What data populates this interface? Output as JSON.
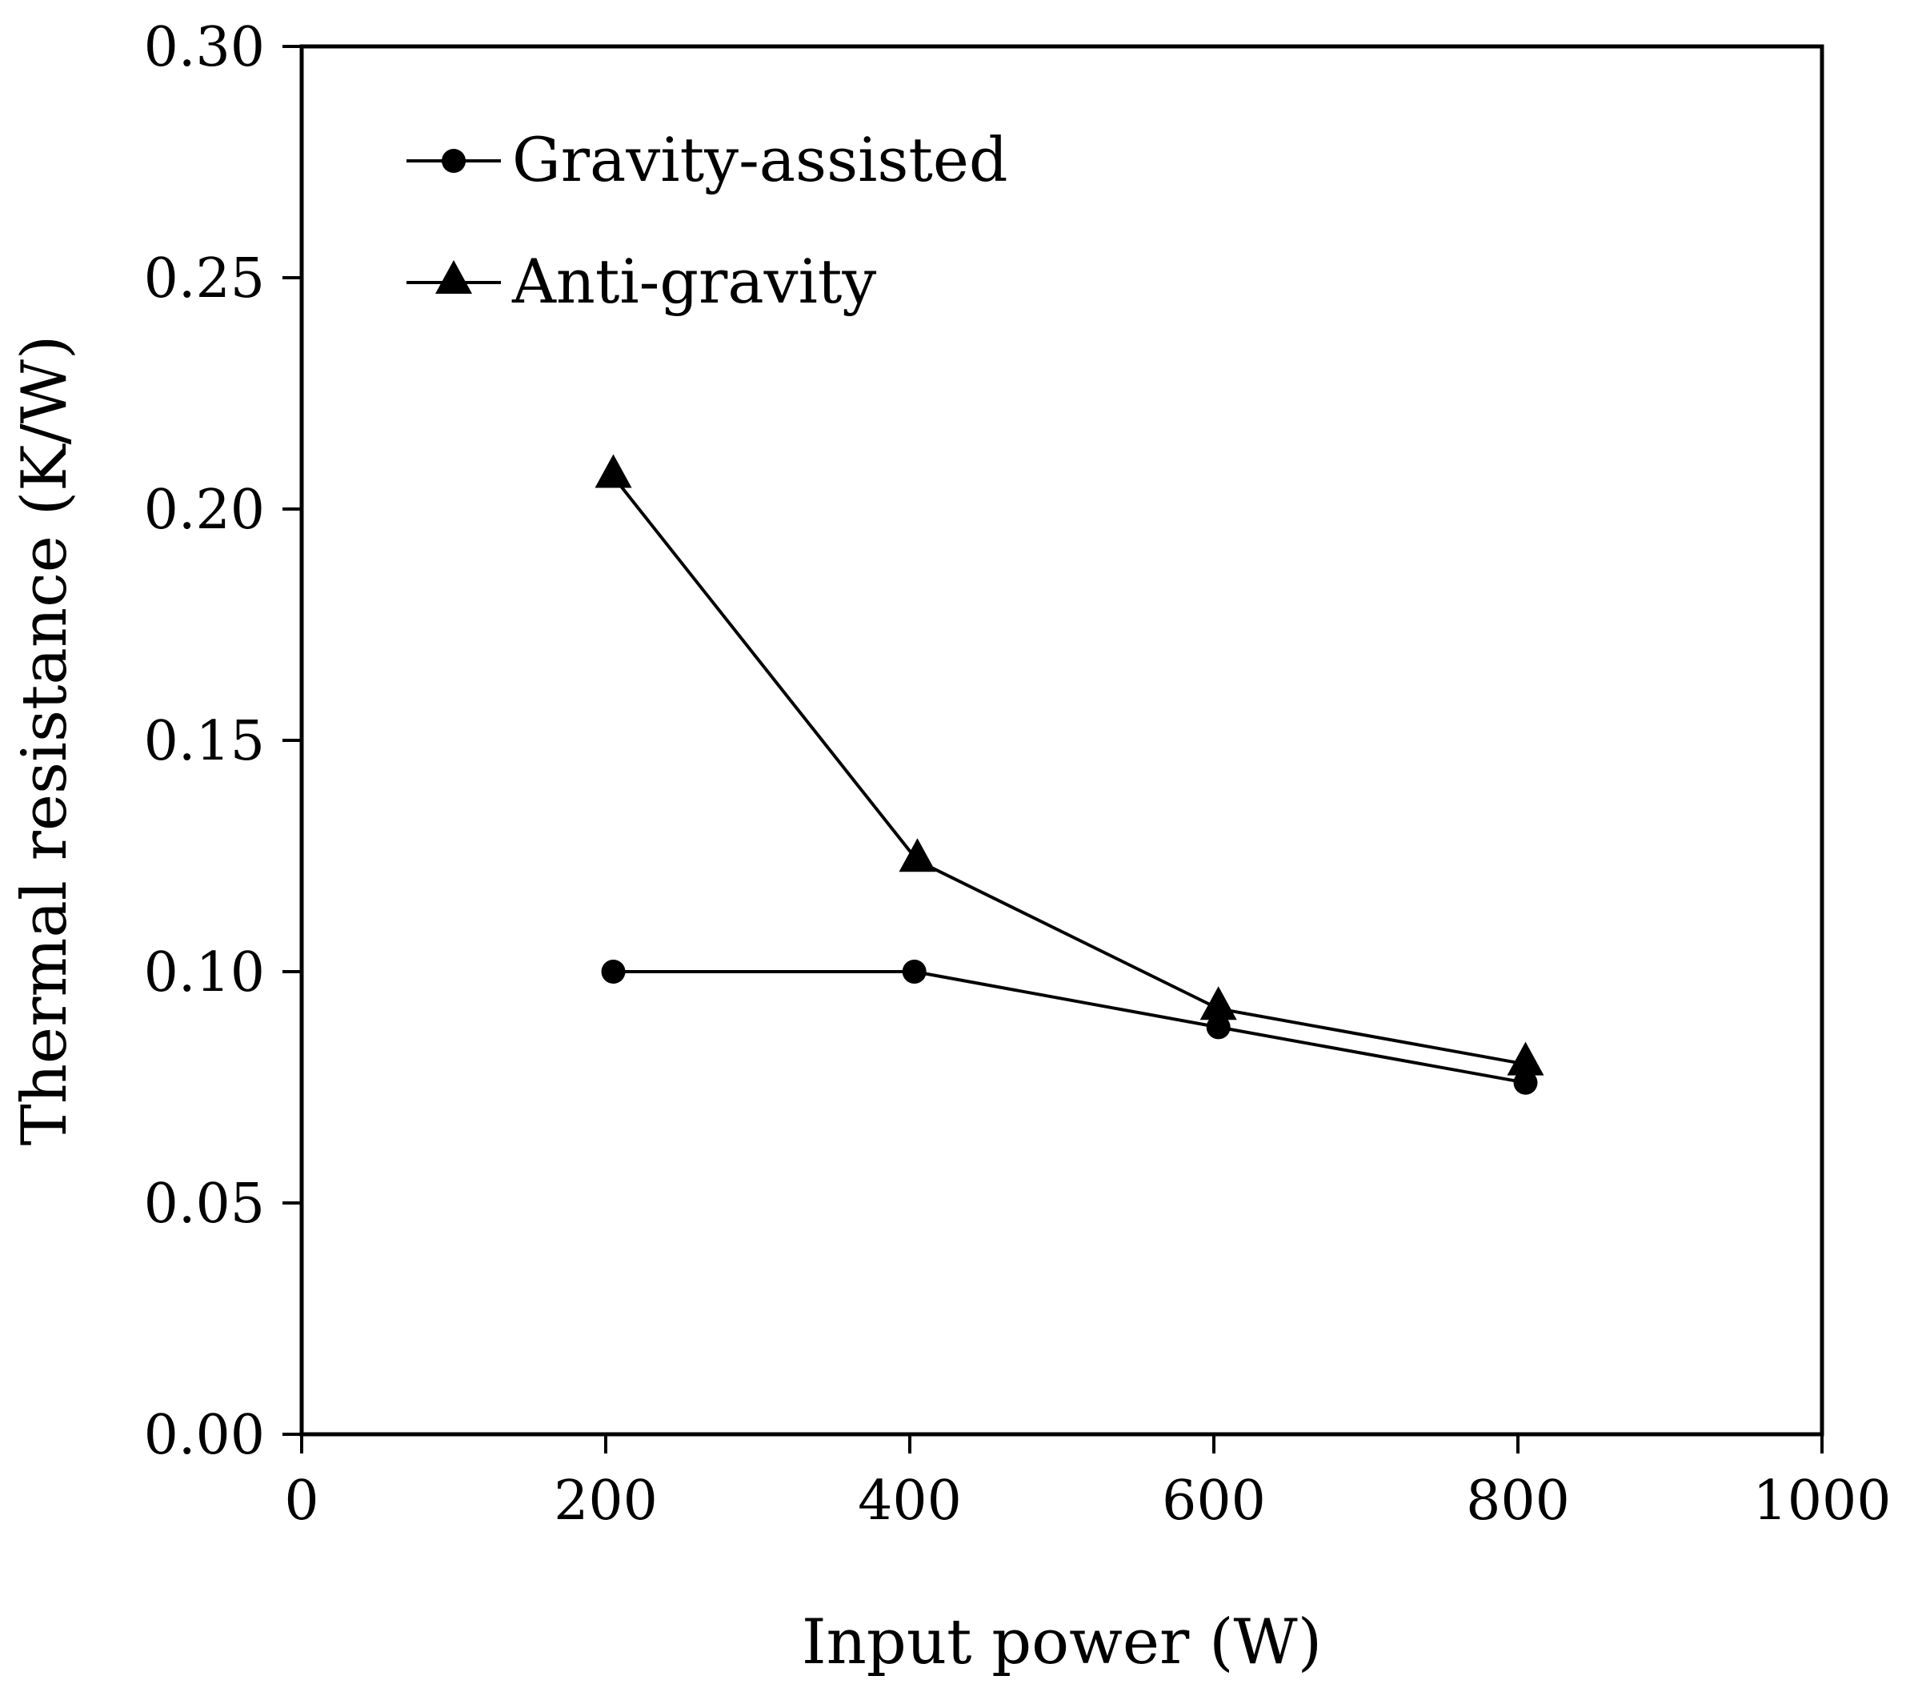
{
  "chart_data": {
    "type": "line",
    "xlabel": "Input power (W)",
    "ylabel": "Thermal resistance (K/W)",
    "xlim": [
      0,
      1000
    ],
    "ylim": [
      0,
      0.3
    ],
    "x_ticks": [
      "0",
      "200",
      "400",
      "600",
      "800",
      "1000"
    ],
    "y_ticks": [
      "0.00",
      "0.05",
      "0.10",
      "0.15",
      "0.20",
      "0.25",
      "0.30"
    ],
    "grid": false,
    "legend_position": "top-left",
    "series": [
      {
        "name": "Gravity-assisted",
        "marker": "circle",
        "x": [
          205,
          403,
          603,
          805
        ],
        "y": [
          0.1,
          0.1,
          0.088,
          0.076
        ]
      },
      {
        "name": "Anti-gravity",
        "marker": "triangle",
        "x": [
          205,
          405,
          603,
          805
        ],
        "y": [
          0.207,
          0.124,
          0.092,
          0.08
        ]
      }
    ],
    "colors": {
      "line": "#000000",
      "marker": "#000000",
      "axis": "#000000",
      "background": "#ffffff"
    }
  }
}
